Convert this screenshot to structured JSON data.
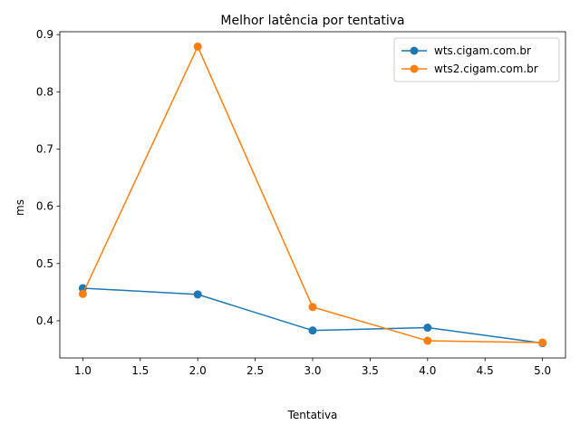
{
  "chart_data": {
    "type": "line",
    "title": "Melhor latência por tentativa",
    "xlabel": "Tentativa",
    "ylabel": "ms",
    "xlim": [
      0.8,
      5.2
    ],
    "ylim": [
      0.335,
      0.905
    ],
    "xticks": [
      1.0,
      1.5,
      2.0,
      2.5,
      3.0,
      3.5,
      4.0,
      4.5,
      5.0
    ],
    "xtick_labels": [
      "1.0",
      "1.5",
      "2.0",
      "2.5",
      "3.0",
      "3.5",
      "4.0",
      "4.5",
      "5.0"
    ],
    "yticks": [
      0.4,
      0.5,
      0.6,
      0.7,
      0.8,
      0.9
    ],
    "ytick_labels": [
      "0.4",
      "0.5",
      "0.6",
      "0.7",
      "0.8",
      "0.9"
    ],
    "grid": false,
    "legend_position": "top-right",
    "x": [
      1,
      2,
      3,
      4,
      5
    ],
    "series": [
      {
        "name": "wts.cigam.com.br",
        "color": "#1f77b4",
        "values": [
          0.457,
          0.446,
          0.383,
          0.388,
          0.361
        ]
      },
      {
        "name": "wts2.cigam.com.br",
        "color": "#ff7f0e",
        "values": [
          0.447,
          0.879,
          0.424,
          0.365,
          0.362
        ]
      }
    ]
  }
}
